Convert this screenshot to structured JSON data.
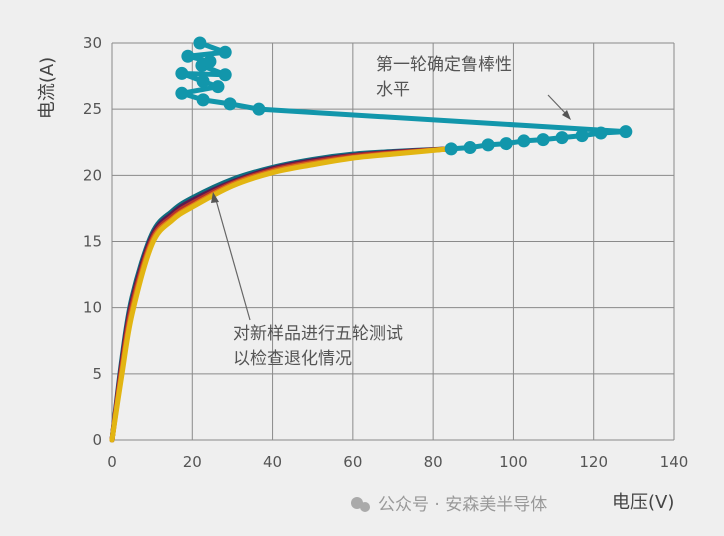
{
  "chart_data": {
    "type": "line",
    "title": "",
    "xlabel": "电压(V)",
    "ylabel": "电流(A)",
    "xlim": [
      0,
      140
    ],
    "ylim": [
      0,
      30
    ],
    "xticks": [
      0,
      20,
      40,
      60,
      80,
      100,
      120,
      140
    ],
    "yticks": [
      0,
      5,
      10,
      15,
      20,
      25,
      30
    ],
    "grid": true,
    "legend": "none",
    "annotations": [
      {
        "lines": [
          "第一轮确定鲁棒性",
          "水平"
        ],
        "points_to": [
          116,
          23.5
        ]
      },
      {
        "lines": [
          "对新样品进行五轮测试",
          "以检查退化情况"
        ],
        "points_to": [
          25,
          18.7
        ]
      }
    ],
    "sweep_series": [
      {
        "color": "#0f6e80",
        "x": [
          0,
          2.5,
          5,
          10,
          15,
          20,
          30,
          40,
          50,
          60,
          70,
          84
        ],
        "y": [
          0,
          6.2,
          10.8,
          15.6,
          17.3,
          18.3,
          19.7,
          20.6,
          21.2,
          21.6,
          21.8,
          22
        ]
      },
      {
        "color": "#5c1a4e",
        "x": [
          0,
          2.5,
          5,
          10,
          15,
          20,
          30,
          40,
          50,
          60,
          70,
          84
        ],
        "y": [
          0,
          5.9,
          10.5,
          15.4,
          17.1,
          18.1,
          19.5,
          20.5,
          21.1,
          21.5,
          21.75,
          22
        ]
      },
      {
        "color": "#b8322a",
        "x": [
          0,
          2.5,
          5,
          10,
          15,
          20,
          30,
          40,
          50,
          60,
          70,
          84
        ],
        "y": [
          0,
          5.6,
          10.2,
          15.2,
          16.9,
          17.9,
          19.4,
          20.4,
          21.0,
          21.45,
          21.7,
          22
        ]
      },
      {
        "color": "#e0781c",
        "x": [
          0,
          2.5,
          5,
          10,
          15,
          20,
          30,
          40,
          50,
          60,
          70,
          84
        ],
        "y": [
          0,
          5.3,
          9.8,
          15.0,
          16.7,
          17.7,
          19.3,
          20.3,
          20.9,
          21.35,
          21.65,
          22
        ]
      },
      {
        "color": "#e2b512",
        "x": [
          0,
          2.5,
          5,
          10,
          15,
          20,
          30,
          40,
          50,
          60,
          70,
          84
        ],
        "y": [
          0,
          5.0,
          9.5,
          14.8,
          16.6,
          17.6,
          19.2,
          20.2,
          20.8,
          21.3,
          21.6,
          22
        ]
      }
    ],
    "robustness_series": {
      "color": "#1296ab",
      "x": [
        84.5,
        89.2,
        93.7,
        98.2,
        102.6,
        107.4,
        112.1,
        117.1,
        121.8,
        128,
        36.6,
        29.4,
        22.7,
        17.4,
        26.4,
        22.7,
        17.4,
        28.2,
        22.4,
        24.4,
        18.9,
        28.2,
        21.9
      ],
      "y": [
        22.0,
        22.1,
        22.3,
        22.4,
        22.6,
        22.7,
        22.85,
        23.0,
        23.2,
        23.3,
        25.0,
        25.4,
        25.7,
        26.2,
        26.7,
        27.1,
        27.7,
        27.6,
        28.3,
        28.6,
        29.0,
        29.3,
        30.0
      ]
    }
  },
  "watermark": "公众号 · 安森美半导体"
}
